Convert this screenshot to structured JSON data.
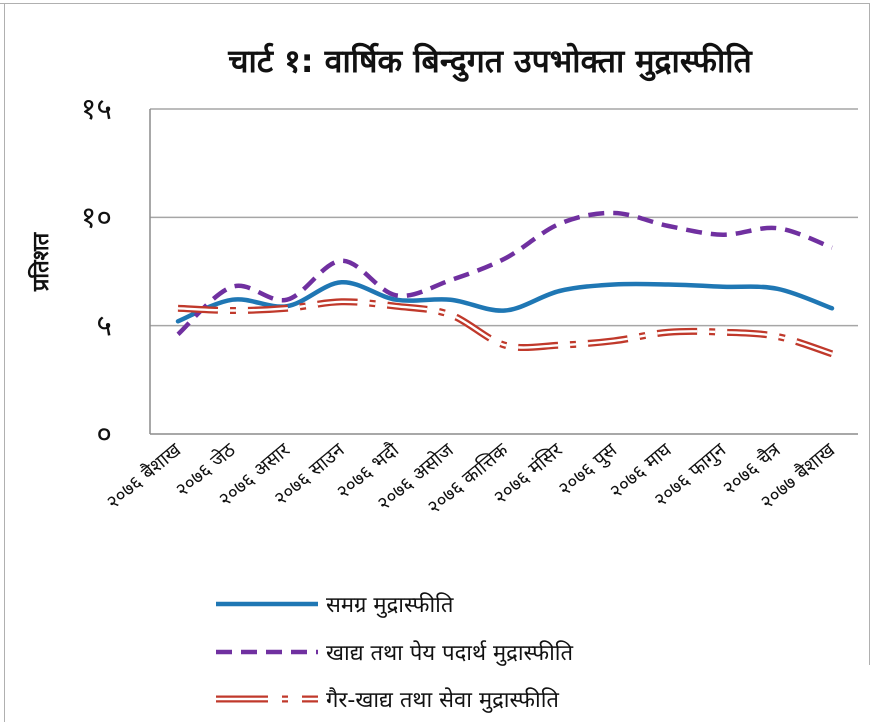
{
  "chart_data": {
    "type": "line",
    "title": "चार्ट १: वार्षिक बिन्दुगत उपभोक्ता मुद्रास्फीति",
    "ylabel": "प्रतिशत",
    "xlabel": "",
    "ylim": [
      0,
      15
    ],
    "yticks": [
      0,
      5,
      10,
      15
    ],
    "ytick_labels": [
      "०",
      "५",
      "१०",
      "१५"
    ],
    "grid": true,
    "legend_placement": "bottom",
    "categories": [
      "२०७६ बैशाख",
      "२०७६ जेठ",
      "२०७६ असार",
      "२०७६ साउन",
      "२०७६ भदौ",
      "२०७६ असोज",
      "२०७६ कात्तिक",
      "२०७६ मंसिर",
      "२०७६ पुस",
      "२०७६ माघ",
      "२०७६ फागुन",
      "२०७६ चैत्र",
      "२०७७ बैशाख"
    ],
    "series": [
      {
        "name": "समग्र मुद्रास्फीति",
        "values": [
          5.2,
          6.2,
          5.9,
          7.0,
          6.2,
          6.2,
          5.7,
          6.6,
          6.9,
          6.9,
          6.8,
          6.7,
          5.8
        ],
        "color": "#1f77b4",
        "style": "solid"
      },
      {
        "name": "खाद्य तथा पेय पदार्थ मुद्रास्फीति",
        "values": [
          4.6,
          6.8,
          6.2,
          8.0,
          6.4,
          7.1,
          8.1,
          9.7,
          10.2,
          9.6,
          9.2,
          9.5,
          8.6
        ],
        "color": "#7030a0",
        "style": "dashed"
      },
      {
        "name": "गैर-खाद्य तथा सेवा मुद्रास्फीति",
        "values": [
          5.8,
          5.7,
          5.8,
          6.1,
          5.9,
          5.5,
          4.1,
          4.1,
          4.3,
          4.7,
          4.7,
          4.5,
          3.7
        ],
        "color": "#c0392b",
        "style": "double-dashdot"
      }
    ]
  }
}
